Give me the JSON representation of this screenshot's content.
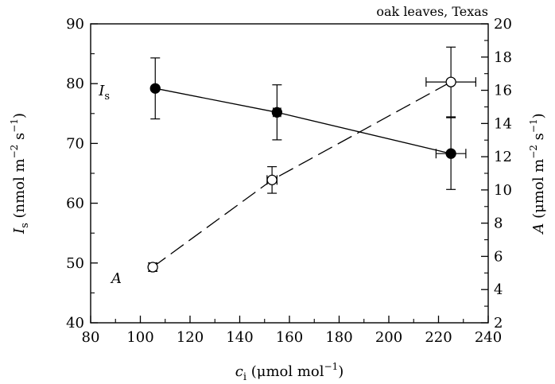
{
  "chart_data": {
    "type": "scatter",
    "title": "oak leaves, Texas",
    "xlabel": {
      "main": "c",
      "sub": "i",
      "unit": " (μmol mol",
      "exp": "−1",
      "close": ")"
    },
    "ylabel_left": {
      "main": "I",
      "sub": "s",
      "unit": " (nmol m",
      "exp1": "−2",
      "mid": " s",
      "exp2": "−1",
      "close": ")"
    },
    "ylabel_right": {
      "main": "A",
      "unit": " (μmol m",
      "exp1": "−2",
      "mid": " s",
      "exp2": "−1",
      "close": ")"
    },
    "xlim": [
      80,
      240
    ],
    "ylim_left": [
      40,
      90
    ],
    "ylim_right": [
      2,
      20
    ],
    "xticks": [
      80,
      100,
      120,
      140,
      160,
      180,
      200,
      220,
      240
    ],
    "yticks_left": [
      40,
      50,
      60,
      70,
      80,
      90
    ],
    "yticks_right": [
      2,
      4,
      6,
      8,
      10,
      12,
      14,
      16,
      18,
      20
    ],
    "series": [
      {
        "name": "Is",
        "label_main": "I",
        "label_sub": "s",
        "axis": "left",
        "marker": "filled-circle",
        "line": "solid",
        "points": [
          {
            "x": 106,
            "y": 79.2,
            "yerr": 5.1,
            "xerr": 0
          },
          {
            "x": 155,
            "y": 75.2,
            "yerr": 4.6,
            "xerr": 1.5
          },
          {
            "x": 225,
            "y": 68.3,
            "yerr": 6.0,
            "xerr": 6
          }
        ]
      },
      {
        "name": "A",
        "label_main": "A",
        "axis": "right",
        "marker": "open-circle",
        "line": "dashed",
        "points": [
          {
            "x": 105,
            "y": 5.35,
            "yerr": 0.25,
            "xerr": 1.5
          },
          {
            "x": 153,
            "y": 10.6,
            "yerr": 0.8,
            "xerr": 2
          },
          {
            "x": 225,
            "y": 16.5,
            "yerr": 2.1,
            "xerr": 10
          }
        ]
      }
    ]
  }
}
